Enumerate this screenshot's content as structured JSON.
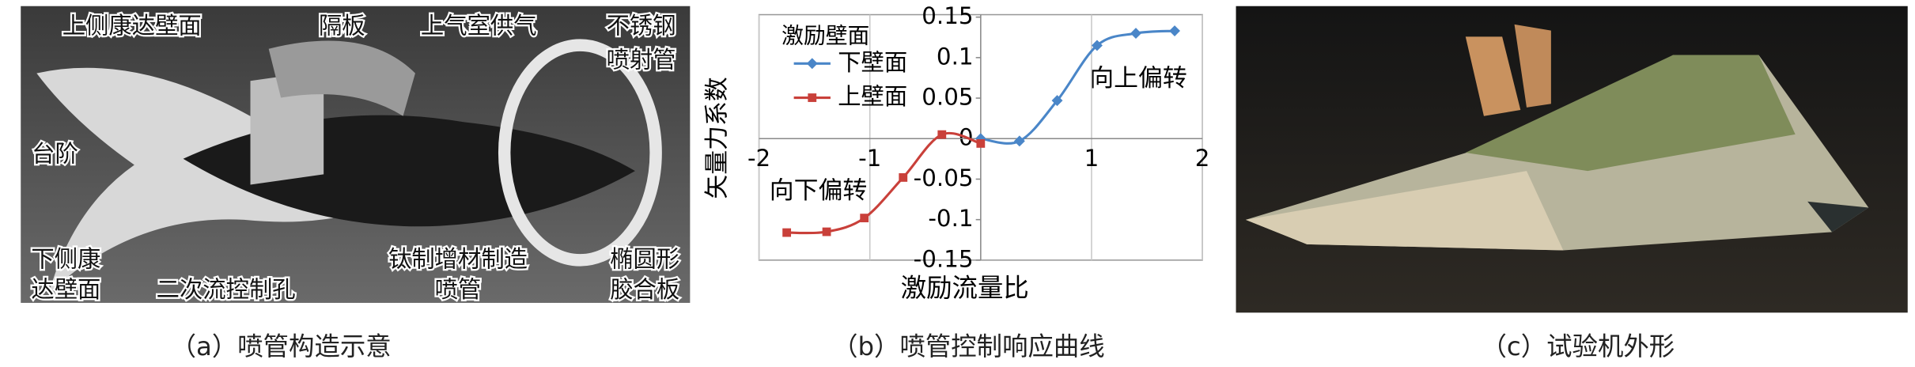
{
  "panel_a": {
    "labels": [
      "上侧康达壁面",
      "隔板",
      "上气室供气",
      "不锈钢",
      "喷射管",
      "台阶",
      "下侧康",
      "达壁面",
      "二次流控制孔",
      "钛制增材制造",
      "喷管",
      "椭圆形",
      "胶合板"
    ],
    "caption": "（a）喷管构造示意"
  },
  "panel_b": {
    "caption": "（b）喷管控制响应曲线"
  },
  "panel_c": {
    "caption": "（c）试验机外形"
  },
  "chart_data": {
    "type": "line",
    "x_label": "激励流量比",
    "y_label": "矢量力系数",
    "legend_title": "激励壁面",
    "annotations": [
      "向上偏转",
      "向下偏转"
    ],
    "series": [
      {
        "name": "下壁面",
        "color": "#4a86c8",
        "marker": "diamond",
        "x": [
          0,
          0.35,
          0.69,
          1.05,
          1.4,
          1.75
        ],
        "values": [
          0,
          -0.003,
          0.047,
          0.115,
          0.13,
          0.133
        ]
      },
      {
        "name": "上壁面",
        "color": "#c9403a",
        "marker": "square",
        "x": [
          -1.75,
          -1.39,
          -1.05,
          -0.7,
          -0.35,
          0
        ],
        "values": [
          -0.116,
          -0.115,
          -0.098,
          -0.048,
          0.005,
          -0.006
        ]
      }
    ],
    "xlim": [
      -2,
      2
    ],
    "ylim": [
      -0.15,
      0.15
    ],
    "xticks": [
      -2,
      -1,
      1,
      2
    ],
    "yticks": [
      0.15,
      0.1,
      0.05,
      0,
      -0.05,
      -0.1,
      -0.15
    ],
    "grid": true
  }
}
